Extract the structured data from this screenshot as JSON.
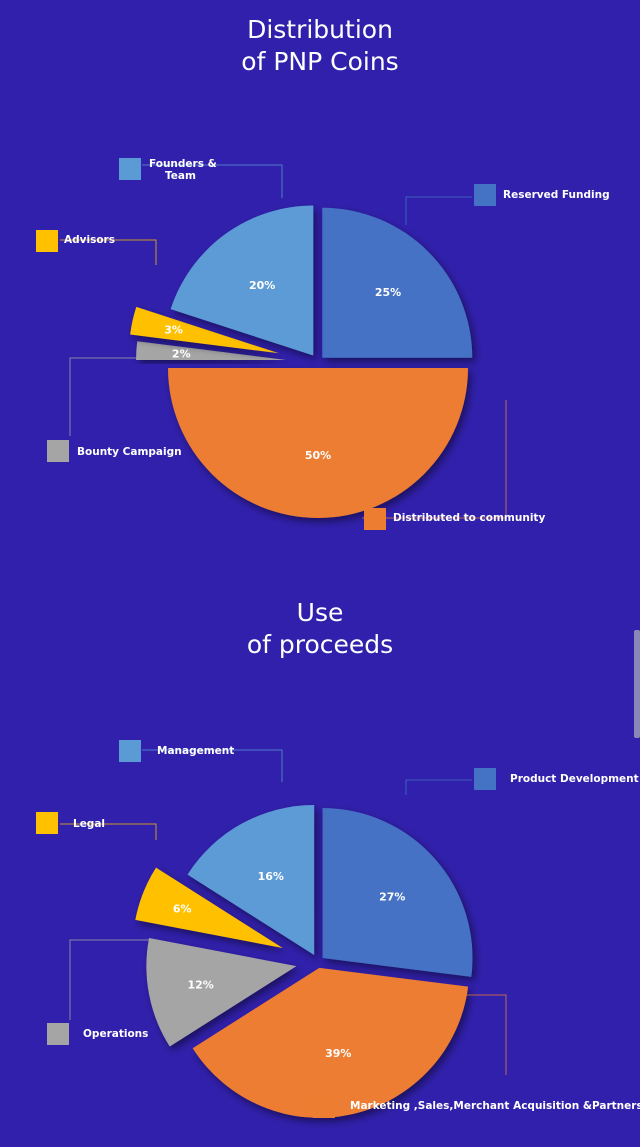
{
  "page": {
    "background": "#3120ab"
  },
  "chart_data": [
    {
      "type": "pie",
      "title": "Distribution\nof PNP Coins",
      "slices": [
        {
          "label": "Reserved Funding",
          "value": 25,
          "value_label": "25%",
          "color": "#4472c4"
        },
        {
          "label": "Distributed to community",
          "value": 50,
          "value_label": "50%",
          "color": "#ed7d31"
        },
        {
          "label": "Bounty Campaign",
          "value": 2,
          "value_label": "2%",
          "color": "#a5a5a5"
        },
        {
          "label": "Advisors",
          "value": 3,
          "value_label": "3%",
          "color": "#ffc000"
        },
        {
          "label": "Founders &\nTeam",
          "value": 20,
          "value_label": "20%",
          "color": "#5b9bd5"
        }
      ],
      "legend": "callouts with leader lines"
    },
    {
      "type": "pie",
      "title": "Use\nof proceeds",
      "slices": [
        {
          "label": "Product Development",
          "value": 27,
          "value_label": "27%",
          "color": "#4472c4"
        },
        {
          "label": "Marketing ,Sales,Merchant Acquisition &Partnership",
          "value": 39,
          "value_label": "39%",
          "color": "#ed7d31"
        },
        {
          "label": "Operations",
          "value": 12,
          "value_label": "12%",
          "color": "#a5a5a5"
        },
        {
          "label": "Legal",
          "value": 6,
          "value_label": "6%",
          "color": "#ffc000"
        },
        {
          "label": "Management",
          "value": 16,
          "value_label": "16%",
          "color": "#5b9bd5"
        }
      ],
      "legend": "callouts with leader lines"
    }
  ]
}
